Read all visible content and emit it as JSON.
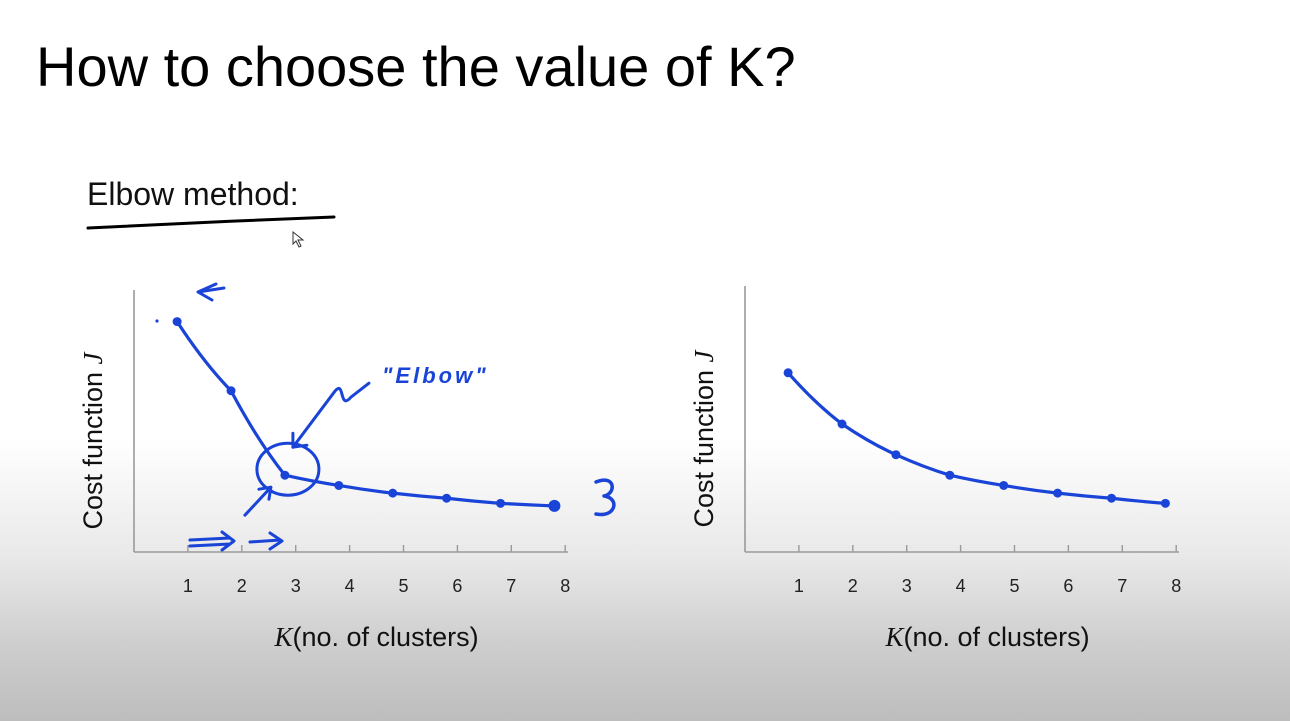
{
  "slide": {
    "title": "How to choose the value of K?",
    "subtitle": "Elbow method:",
    "annotation": "\"Elbow\""
  },
  "colors": {
    "background": "#ffffff",
    "ink": "#1a44d8",
    "axis": "#9a9a9a"
  },
  "chart_data": [
    {
      "type": "line",
      "x": [
        1,
        2,
        3,
        4,
        5,
        6,
        7,
        8
      ],
      "y": [
        9.0,
        6.3,
        3.0,
        2.6,
        2.3,
        2.1,
        1.9,
        1.8
      ],
      "xlabel_var": "K",
      "xlabel": "(no. of clusters)",
      "ylabel_text": "Cost function ",
      "ylabel_var": "J",
      "xlim": [
        0,
        8
      ],
      "ylim": [
        0,
        10
      ],
      "tick_labels": [
        "1",
        "2",
        "3",
        "4",
        "5",
        "6",
        "7",
        "8"
      ],
      "grid": false,
      "annotation": "\"Elbow\"",
      "elbow_at": 3
    },
    {
      "type": "line",
      "x": [
        1,
        2,
        3,
        4,
        5,
        6,
        7,
        8
      ],
      "y": [
        7.0,
        5.0,
        3.8,
        3.0,
        2.6,
        2.3,
        2.1,
        1.9
      ],
      "xlabel_var": "K",
      "xlabel": "(no. of clusters)",
      "ylabel_text": "Cost function ",
      "ylabel_var": "J",
      "xlim": [
        0,
        8
      ],
      "ylim": [
        0,
        10
      ],
      "tick_labels": [
        "1",
        "2",
        "3",
        "4",
        "5",
        "6",
        "7",
        "8"
      ],
      "grid": false
    }
  ]
}
